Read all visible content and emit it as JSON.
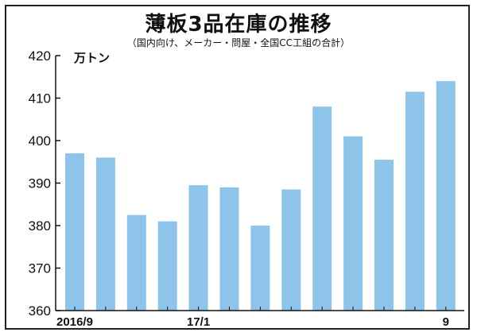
{
  "chart_data": {
    "type": "bar",
    "title": "薄板3品在庫の推移",
    "subtitle": "（国内向け、メーカー・問屋・全国CC工組の合計）",
    "unit_label": "万トン",
    "ylim": [
      360,
      420
    ],
    "yticks": [
      360,
      370,
      380,
      390,
      400,
      410,
      420
    ],
    "categories": [
      "2016/9",
      "",
      "",
      "",
      "17/1",
      "",
      "",
      "",
      "",
      "",
      "",
      "",
      "9"
    ],
    "values": [
      397,
      396,
      382.5,
      381,
      389.5,
      389,
      380,
      388.5,
      408,
      401,
      395.5,
      411.5,
      414
    ],
    "bar_color": "#8ec4ea",
    "grid": false
  }
}
